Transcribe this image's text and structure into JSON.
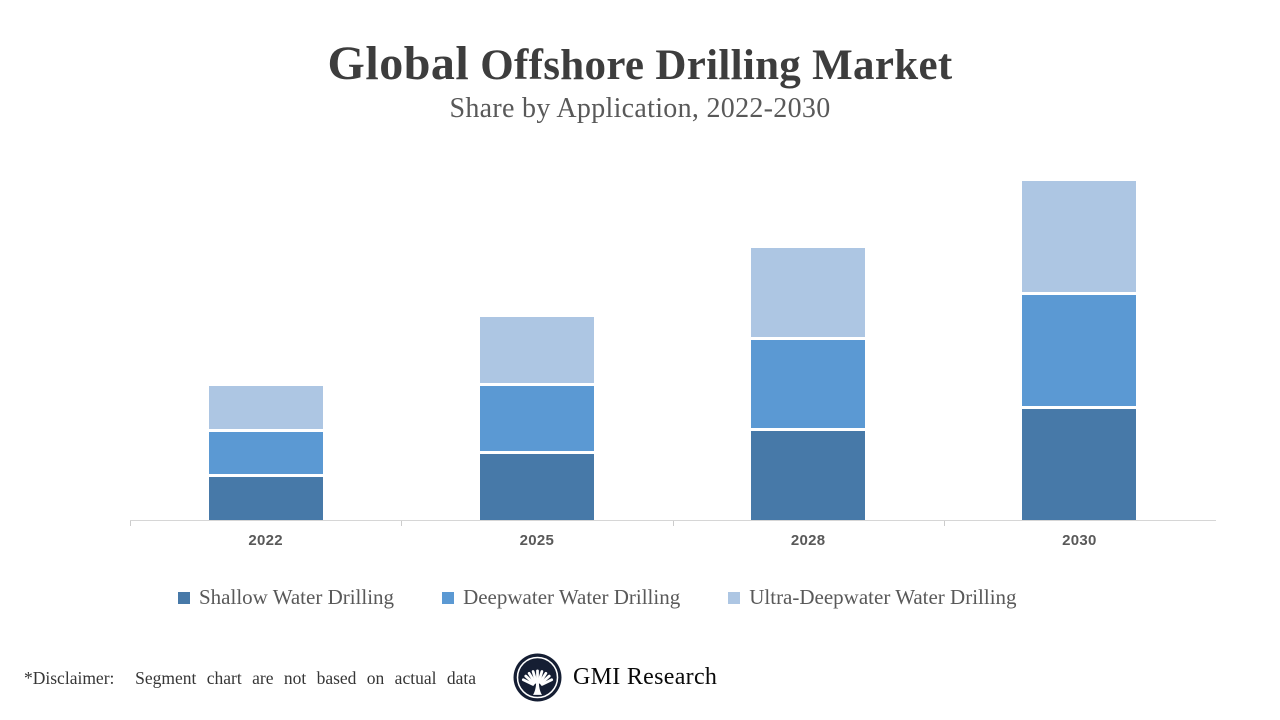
{
  "header": {
    "title_lead": "Global",
    "title_rest": " Offshore Drilling Market",
    "subtitle": "Share by Application, 2022-2030"
  },
  "chart_data": {
    "type": "bar",
    "variant": "stacked-column",
    "title": "Global Offshore Drilling Market",
    "subtitle": "Share by Application, 2022-2030",
    "xlabel": "",
    "ylabel": "",
    "grid": false,
    "y_axis_visible": false,
    "legend_position": "bottom",
    "categories": [
      "2022",
      "2025",
      "2028",
      "2030"
    ],
    "series": [
      {
        "name": "Shallow Water Drilling",
        "color": "#4779A8",
        "values": [
          13.3,
          20.0,
          26.7,
          33.3
        ]
      },
      {
        "name": "Deepwater Water Drilling",
        "color": "#5B99D3",
        "values": [
          13.3,
          20.0,
          26.7,
          33.3
        ]
      },
      {
        "name": "Ultra-Deepwater Water Drilling",
        "color": "#ADC6E3",
        "values": [
          13.3,
          20.0,
          26.7,
          33.3
        ]
      }
    ],
    "stack_totals": [
      40,
      60,
      80,
      100
    ],
    "ylim": [
      0,
      105
    ]
  },
  "footer": {
    "disclaimer": "*Disclaimer:  Segment chart are not based on actual data",
    "brand_name": "GMI Research",
    "logo_icon": "palmette-tree-icon"
  },
  "colors": {
    "shallow_water": "#4779A8",
    "deepwater": "#5B99D3",
    "ultra_deepwater": "#ADC6E3",
    "axis_line": "#D6D6D6",
    "muted_text": "#595959",
    "title_text": "#3D3D3D",
    "logo_navy": "#151E33"
  }
}
